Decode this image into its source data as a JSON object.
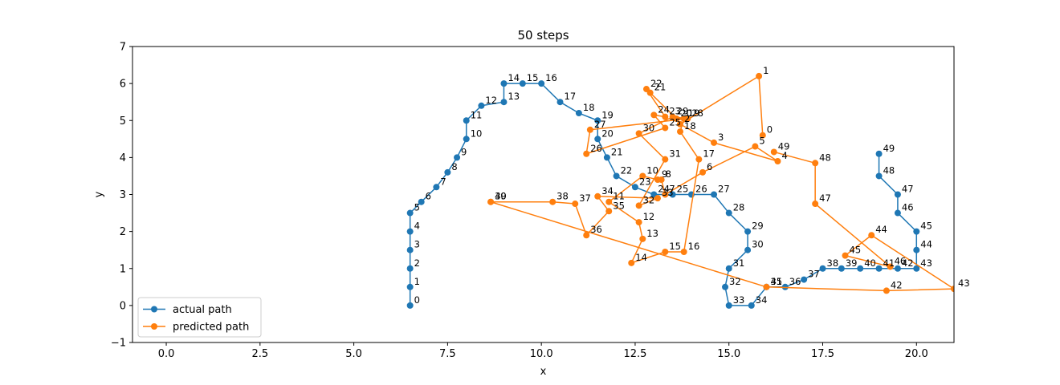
{
  "chart_data": {
    "type": "line",
    "title": "50 steps",
    "xlabel": "x",
    "ylabel": "y",
    "xlim": [
      -0.9,
      21.0
    ],
    "ylim": [
      -1,
      7
    ],
    "xticks": [
      0.0,
      2.5,
      5.0,
      7.5,
      10.0,
      12.5,
      15.0,
      17.5,
      20.0
    ],
    "xtick_labels": [
      "0.0",
      "2.5",
      "5.0",
      "7.5",
      "10.0",
      "12.5",
      "15.0",
      "17.5",
      "20.0"
    ],
    "yticks": [
      -1,
      0,
      1,
      2,
      3,
      4,
      5,
      6,
      7
    ],
    "ytick_labels": [
      "−1",
      "0",
      "1",
      "2",
      "3",
      "4",
      "5",
      "6",
      "7"
    ],
    "grid": false,
    "legend_position": "bottom-left",
    "series": [
      {
        "name": "actual path",
        "color": "#1f77b4",
        "x": [
          6.5,
          6.5,
          6.5,
          6.5,
          6.5,
          6.5,
          6.8,
          7.2,
          7.5,
          7.75,
          8.0,
          8.0,
          8.4,
          9.0,
          9.0,
          9.5,
          10.0,
          10.5,
          11.0,
          11.5,
          11.5,
          11.75,
          12.0,
          12.5,
          13.0,
          13.5,
          14.0,
          14.6,
          15.0,
          15.5,
          15.5,
          15.0,
          14.9,
          15.0,
          15.6,
          16.0,
          16.5,
          17.0,
          17.5,
          18.0,
          18.5,
          19.0,
          19.5,
          20.0,
          20.0,
          20.0,
          19.5,
          19.5,
          19.0,
          19.0
        ],
        "y": [
          0.0,
          0.5,
          1.0,
          1.5,
          2.0,
          2.5,
          2.8,
          3.2,
          3.6,
          4.0,
          4.5,
          5.0,
          5.4,
          5.5,
          6.0,
          6.0,
          6.0,
          5.5,
          5.2,
          5.0,
          4.5,
          4.0,
          3.5,
          3.2,
          3.0,
          3.0,
          3.0,
          3.0,
          2.5,
          2.0,
          1.5,
          1.0,
          0.5,
          0.0,
          0.0,
          0.5,
          0.5,
          0.7,
          1.0,
          1.0,
          1.0,
          1.0,
          1.0,
          1.0,
          1.5,
          2.0,
          2.5,
          3.0,
          3.5,
          4.1
        ],
        "labels": [
          "0",
          "1",
          "2",
          "3",
          "4",
          "5",
          "6",
          "7",
          "8",
          "9",
          "10",
          "11",
          "12",
          "13",
          "14",
          "15",
          "16",
          "17",
          "18",
          "19",
          "20",
          "21",
          "22",
          "23",
          "24",
          "25",
          "26",
          "27",
          "28",
          "29",
          "30",
          "31",
          "32",
          "33",
          "34",
          "35",
          "36",
          "37",
          "38",
          "39",
          "40",
          "41",
          "42",
          "43",
          "44",
          "45",
          "46",
          "47",
          "48",
          "49"
        ]
      },
      {
        "name": "predicted path",
        "color": "#ff7f0e",
        "x": [
          15.9,
          15.8,
          13.7,
          14.6,
          16.3,
          15.7,
          14.3,
          13.3,
          13.2,
          13.1,
          12.7,
          11.8,
          12.6,
          12.7,
          12.4,
          13.3,
          13.8,
          14.2,
          13.7,
          13.8,
          13.6,
          12.9,
          12.8,
          13.3,
          13.0,
          13.3,
          11.2,
          11.3,
          13.9,
          13.5,
          12.6,
          13.3,
          12.6,
          13.1,
          11.5,
          11.8,
          11.2,
          10.9,
          10.3,
          8.65,
          8.65,
          16.0,
          19.2,
          21.0,
          18.8,
          18.1,
          19.3,
          17.3,
          17.3,
          16.2
        ],
        "y": [
          4.6,
          6.2,
          4.9,
          4.4,
          3.9,
          4.3,
          3.6,
          3.0,
          3.4,
          3.4,
          3.5,
          2.8,
          2.25,
          1.8,
          1.15,
          1.45,
          1.45,
          3.95,
          4.7,
          5.05,
          5.05,
          5.75,
          5.85,
          5.1,
          5.15,
          4.8,
          4.1,
          4.75,
          5.05,
          5.1,
          4.65,
          3.95,
          2.7,
          2.9,
          2.95,
          2.55,
          1.9,
          2.75,
          2.8,
          2.8,
          2.8,
          0.5,
          0.4,
          0.45,
          1.9,
          1.35,
          1.05,
          2.75,
          3.85,
          4.15
        ],
        "labels": [
          "0",
          "1",
          "2",
          "3",
          "4",
          "5",
          "6",
          "7",
          "8",
          "9",
          "10",
          "11",
          "12",
          "13",
          "14",
          "15",
          "16",
          "17",
          "18",
          "19",
          "20",
          "21",
          "22",
          "23",
          "24",
          "25",
          "26",
          "27",
          "28",
          "29",
          "30",
          "31",
          "32",
          "33",
          "34",
          "35",
          "36",
          "37",
          "38",
          "39",
          "40",
          "41",
          "42",
          "43",
          "44",
          "45",
          "46",
          "47",
          "48",
          "49"
        ]
      }
    ]
  }
}
